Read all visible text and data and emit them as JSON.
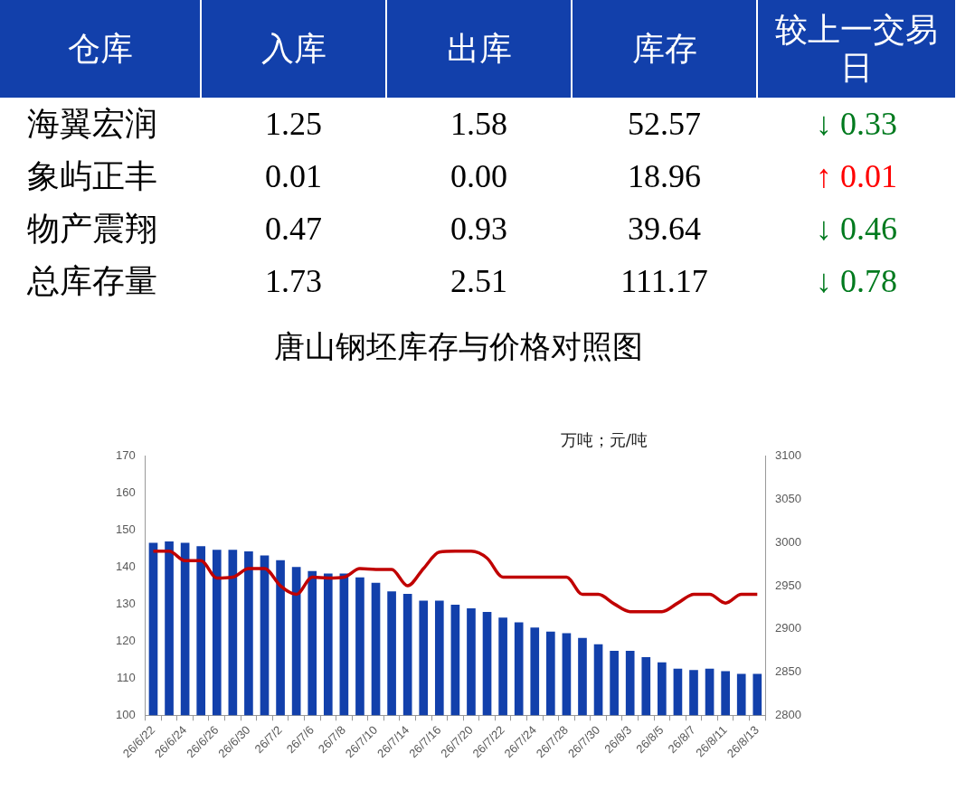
{
  "chart_data": [
    {
      "type": "other",
      "ylabel": "仓库",
      "categories": [
        "入库",
        "出库",
        "库存",
        "较上一交易日"
      ],
      "y_categories": [
        "海翼宏润",
        "象屿正丰",
        "物产震翔",
        "总库存量"
      ],
      "cell_labels": [
        [
          "1.25",
          "1.58",
          "52.57",
          "↓ 0.33"
        ],
        [
          "0.01",
          "0.00",
          "18.96",
          "↑ 0.01"
        ],
        [
          "0.47",
          "0.93",
          "39.64",
          "↓ 0.46"
        ],
        [
          "1.73",
          "2.51",
          "111.17",
          "↓ 0.78"
        ]
      ],
      "colors": [
        [
          "#000000",
          "#000000",
          "#000000",
          "#007a1e"
        ],
        [
          "#000000",
          "#000000",
          "#000000",
          "#ff0000"
        ],
        [
          "#000000",
          "#000000",
          "#000000",
          "#007a1e"
        ],
        [
          "#000000",
          "#000000",
          "#000000",
          "#007a1e"
        ]
      ]
    },
    {
      "type": "bar",
      "title": "唐山钢坯库存与价格对照图",
      "annotations": [
        "万吨；元/吨"
      ],
      "categories": [
        "26/6/22",
        null,
        "26/6/24",
        null,
        "26/6/26",
        null,
        "26/6/30",
        null,
        "26/7/2",
        null,
        "26/7/6",
        null,
        "26/7/8",
        null,
        "26/7/10",
        null,
        "26/7/14",
        null,
        "26/7/16",
        null,
        "26/7/20",
        null,
        "26/7/22",
        null,
        "26/7/24",
        null,
        "26/7/28",
        null,
        "26/7/30",
        null,
        "26/8/3",
        null,
        "26/8/5",
        null,
        "26/8/7",
        null,
        "26/8/11",
        null,
        "26/8/13"
      ],
      "series": [
        {
          "type": "bar",
          "color": "#1240ab",
          "values": [
            146.6,
            147.0,
            146.6,
            145.7,
            144.7,
            144.7,
            144.3,
            143.2,
            141.9,
            140.1,
            139.0,
            138.3,
            138.3,
            137.3,
            135.8,
            133.5,
            132.8,
            131.0,
            131.0,
            129.9,
            128.9,
            127.9,
            126.4,
            125.1,
            123.7,
            122.6,
            122.2,
            120.9,
            119.2,
            117.4,
            117.4,
            115.7,
            114.3,
            112.6,
            112.2,
            112.6,
            111.9,
            111.2,
            111.2
          ]
        },
        {
          "type": "line",
          "axis": "y2",
          "color": "#c00000",
          "values": [
            2990,
            2990,
            2979,
            2979,
            2959,
            2960,
            2970,
            2970,
            2950,
            2940,
            2960,
            2959,
            2960,
            2970,
            2969,
            2969,
            2950,
            2970,
            2989,
            2990,
            2990,
            2982,
            2960,
            2960,
            2960,
            2960,
            2960,
            2940,
            2940,
            2929,
            2920,
            2920,
            2920,
            2930,
            2940,
            2940,
            2930,
            2940,
            2940
          ]
        }
      ],
      "ylim": [
        100,
        170
      ],
      "yticks": [
        100,
        110,
        120,
        130,
        140,
        150,
        160,
        170
      ],
      "y2lim": [
        2800,
        3100
      ],
      "y2ticks": [
        2800,
        2850,
        2900,
        2950,
        3000,
        3050,
        3100
      ],
      "grid": false,
      "legend": false,
      "marker": "none"
    }
  ]
}
